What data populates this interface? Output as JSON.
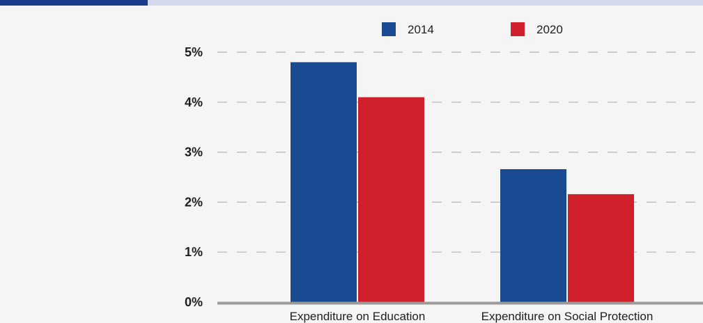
{
  "colors": {
    "series_2014": "#1a4a91",
    "series_2020": "#d0202b",
    "grid": "#b5b5b5",
    "baseline": "#9a9a9a",
    "accent_bar": "#1a3a8c"
  },
  "chart_data": {
    "type": "bar",
    "categories": [
      "Expenditure on Education",
      "Expenditure on Social Protection"
    ],
    "series": [
      {
        "name": "2014",
        "values": [
          4.8,
          2.66
        ]
      },
      {
        "name": "2020",
        "values": [
          4.1,
          2.16
        ]
      }
    ],
    "title": "",
    "xlabel": "",
    "ylabel": "",
    "ylim": [
      0,
      5
    ],
    "yticks": [
      "0%",
      "1%",
      "2%",
      "3%",
      "4%",
      "5%"
    ],
    "grid": true,
    "legend_position": "top-center"
  }
}
